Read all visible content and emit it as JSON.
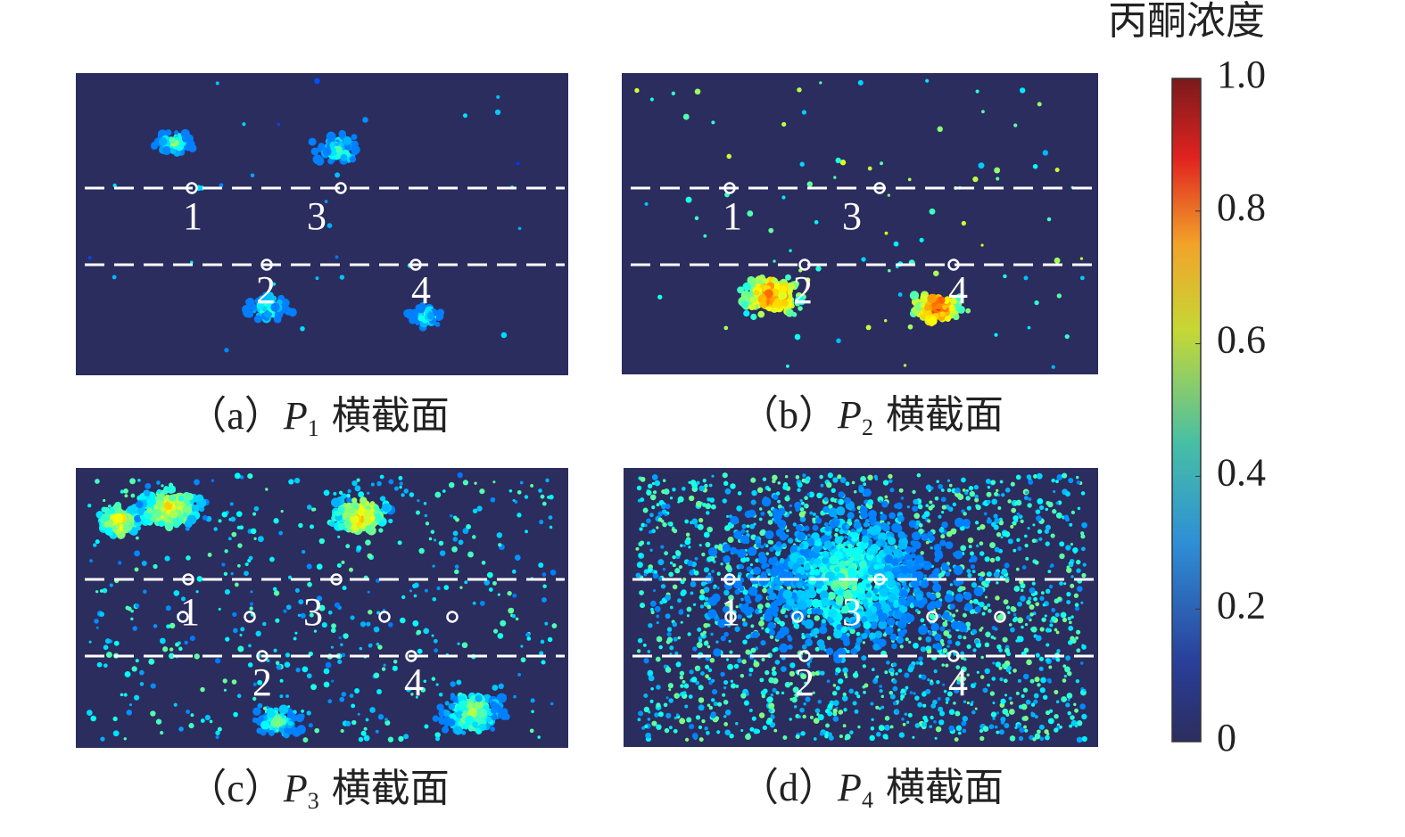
{
  "colorbar": {
    "title": "丙酮浓度",
    "lim": [
      0,
      {
        "value": 1,
        "label": "1.0"
      }
    ],
    "ticks": [
      0,
      0.2,
      0.4,
      0.6,
      0.8,
      {
        "value": 1,
        "label": "1.0"
      }
    ]
  },
  "panels": [
    {
      "label": "（a）",
      "variable": "P",
      "subscript": "1",
      "suffix": "横截面",
      "points": [
        "1",
        "2",
        "3",
        "4"
      ]
    },
    {
      "label": "（b）",
      "variable": "P",
      "subscript": "2",
      "suffix": "横截面",
      "points": [
        "1",
        "2",
        "3",
        "4"
      ]
    },
    {
      "label": "（c）",
      "variable": "P",
      "subscript": "3",
      "suffix": "横截面",
      "points": [
        "1",
        "2",
        "3",
        "4"
      ]
    },
    {
      "label": "（d）",
      "variable": "P",
      "subscript": "4",
      "suffix": "横截面",
      "points": [
        "1",
        "2",
        "3",
        "4"
      ]
    }
  ]
}
